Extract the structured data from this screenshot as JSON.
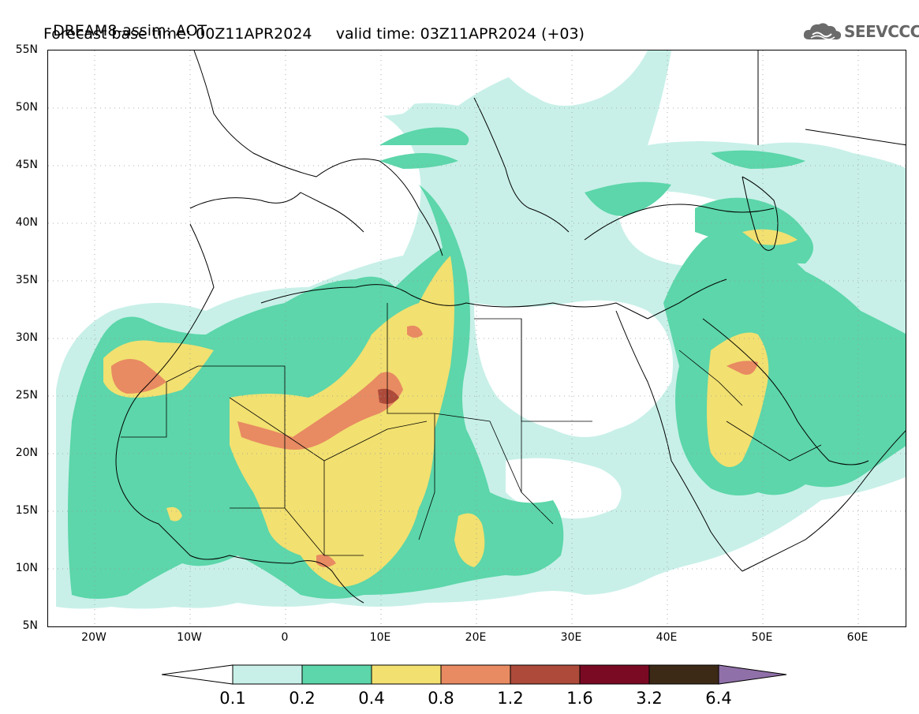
{
  "header": {
    "title": "DREAM8-assim: AOT",
    "forecast_base_time": "Forecast base time: 00Z11APR2024",
    "valid_time": "valid time: 03Z11APR2024 (+03)"
  },
  "logo": {
    "text": "SEEVCCC",
    "icon": "cloud-logo-icon"
  },
  "map": {
    "lat_labels": [
      "55N",
      "50N",
      "45N",
      "40N",
      "35N",
      "30N",
      "25N",
      "20N",
      "15N",
      "10N",
      "5N"
    ],
    "lon_labels": [
      "20W",
      "10W",
      "0",
      "10E",
      "20E",
      "30E",
      "40E",
      "50E",
      "60E"
    ],
    "lat_range": [
      5,
      55
    ],
    "lon_range": [
      -25,
      65
    ],
    "grid": "dotted"
  },
  "colorbar": {
    "labels": [
      "0.1",
      "0.2",
      "0.4",
      "0.8",
      "1.2",
      "1.6",
      "3.2",
      "6.4"
    ],
    "colors": [
      "#ffffff",
      "#c8f0e8",
      "#5cd6aa",
      "#f2e070",
      "#e88a62",
      "#ad4a3a",
      "#7a0a24",
      "#3c2a16",
      "#9070a8"
    ]
  }
}
